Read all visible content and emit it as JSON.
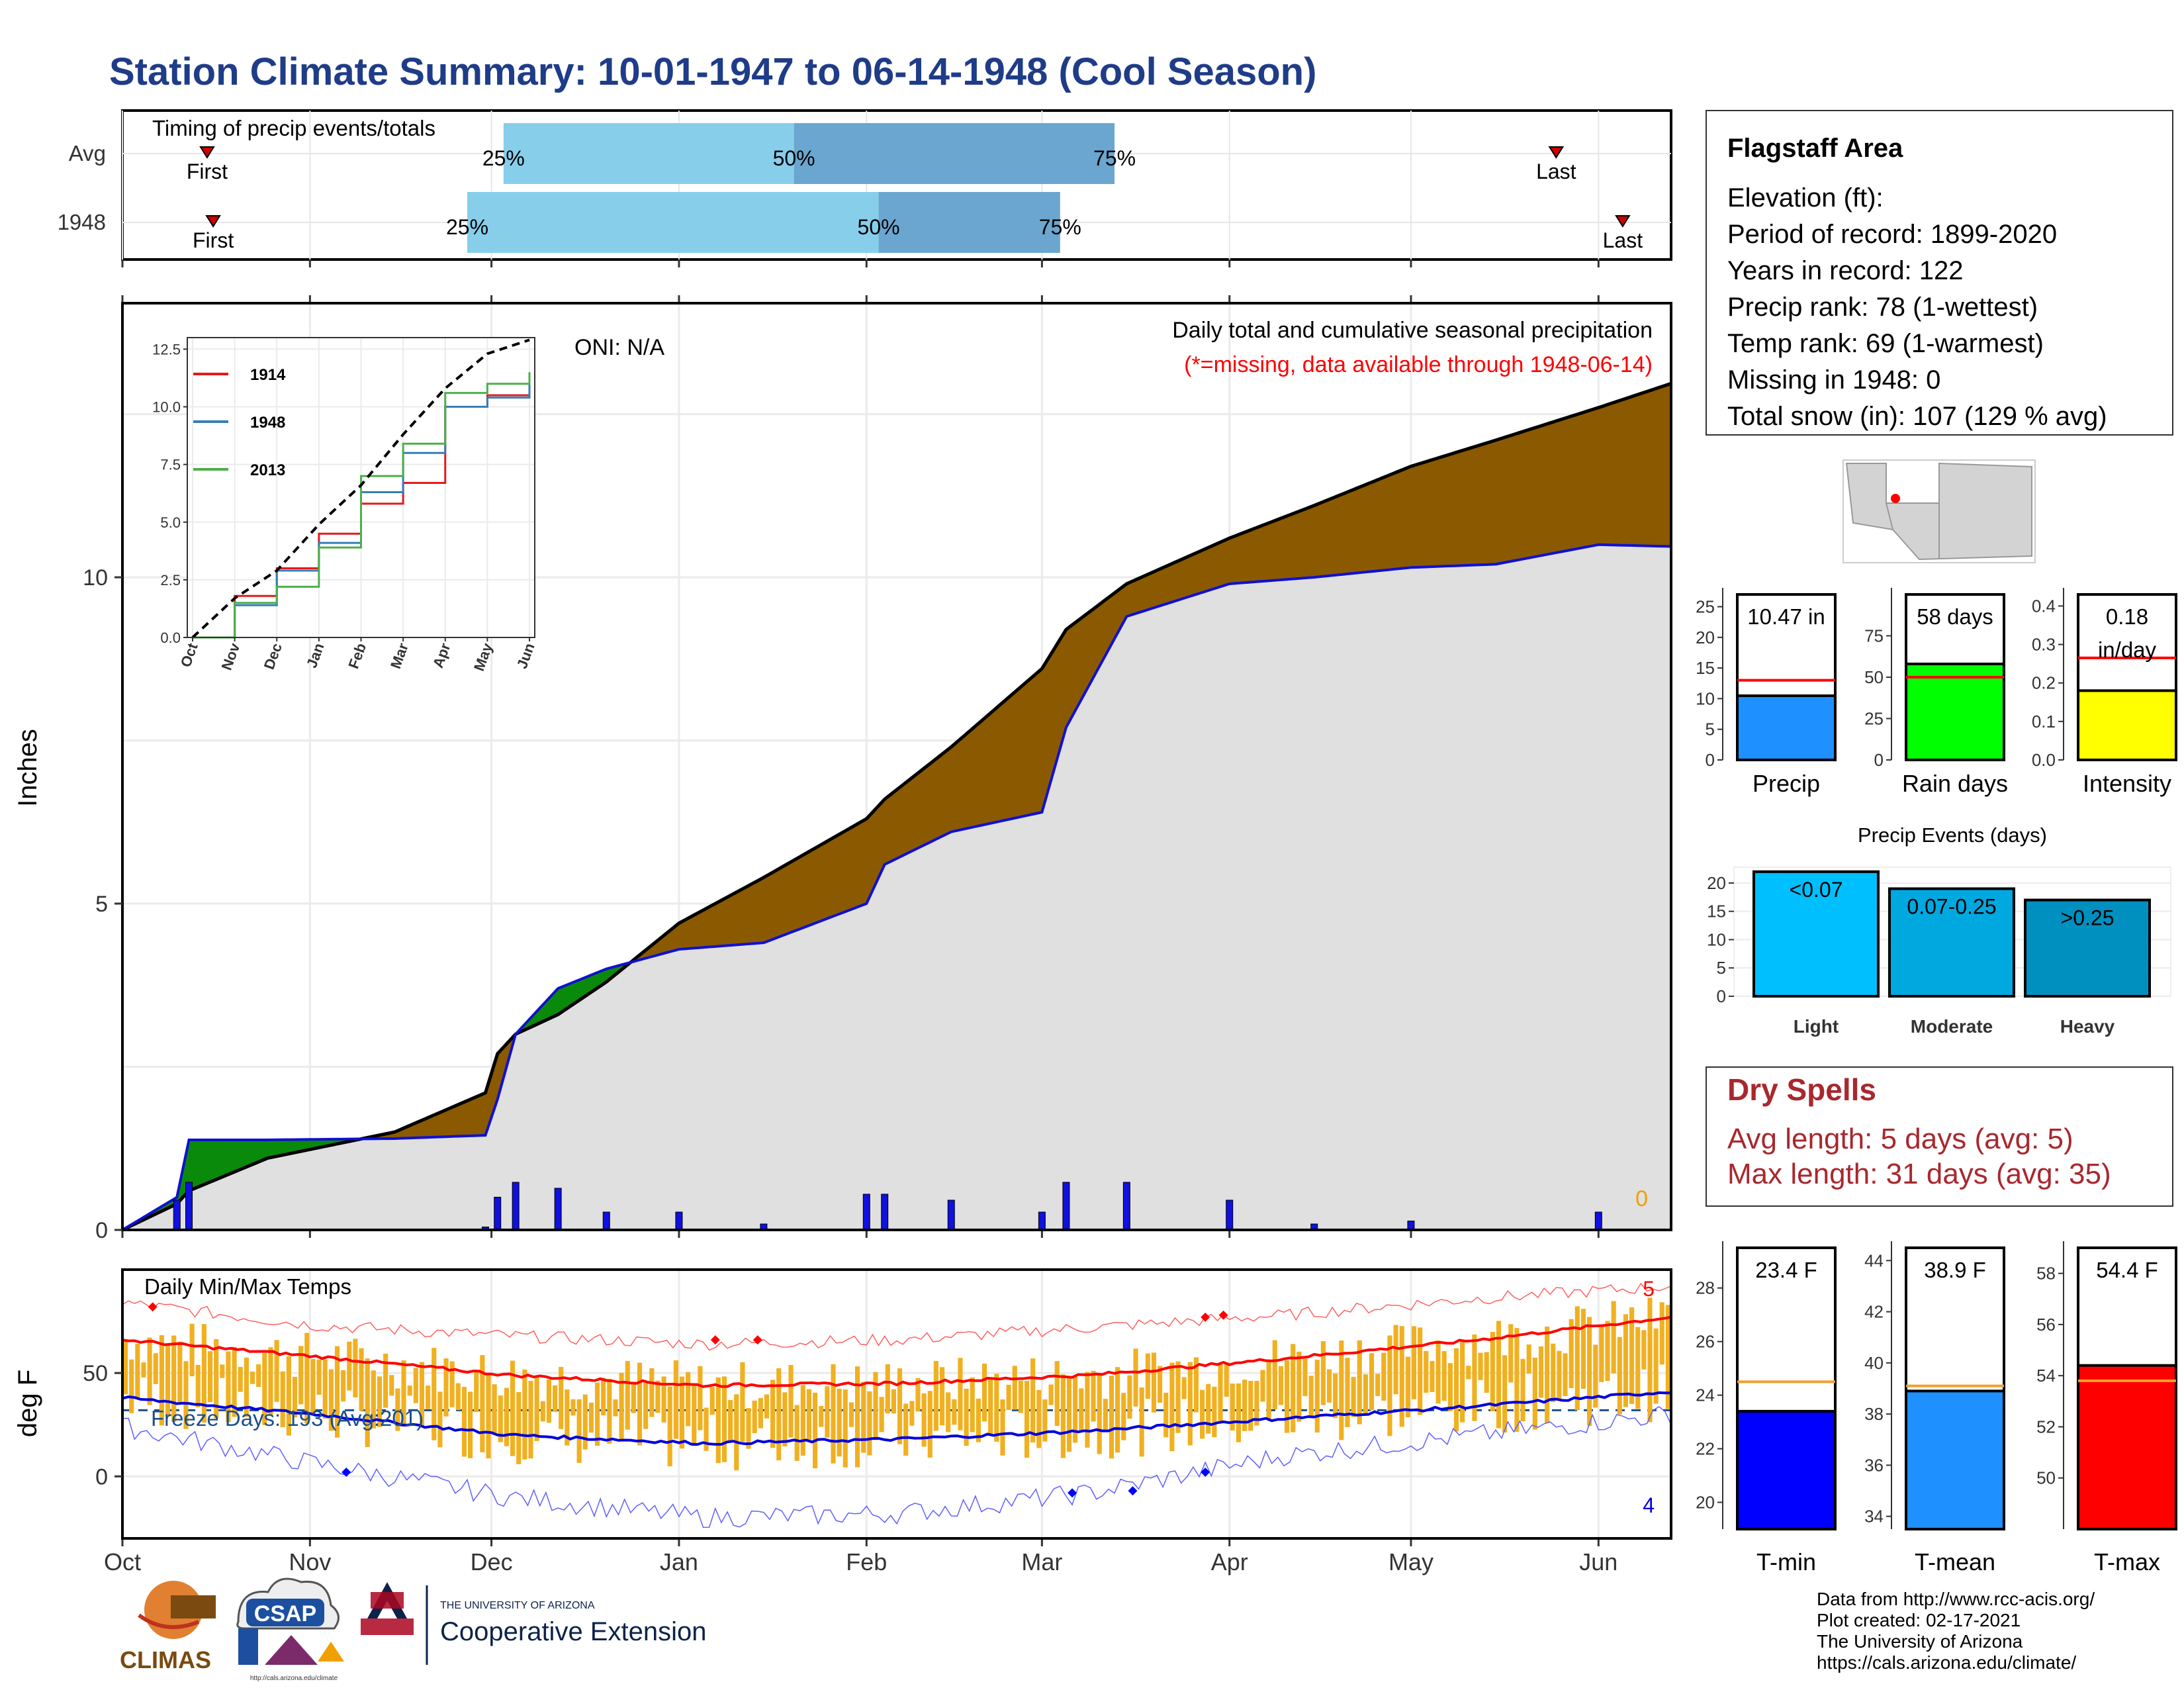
{
  "title": "Station Climate Summary: 10-01-1947 to 06-14-1948 (Cool Season)",
  "colors": {
    "title": "#1f3c88",
    "cum_fill": "#8b5a00",
    "green_fill": "#0a8a0a",
    "gray_fill": "#e0e0e0",
    "cum_line_blue": "#1010d0",
    "bar_blue": "#1010e0",
    "snow": "#7fd4f7",
    "q_light": "#87ceeb",
    "q_dark": "#6aa6cf",
    "tmax_line": "#ff0000",
    "tmin_line": "#0000dd",
    "temp_bar": "#f0b020",
    "orange": "#f0a000"
  },
  "timing": {
    "label": "Timing of precip events/totals",
    "rows": [
      {
        "name": "Avg",
        "first_label": "First",
        "last_label": "Last",
        "first": "Oct 15",
        "p25": "Dec 3",
        "p50": "Jan 20",
        "p75": "Mar 13",
        "last": "May 25"
      },
      {
        "name": "1948",
        "first_label": "First",
        "last_label": "Last",
        "first": "Oct 16",
        "p25": "Nov 27",
        "p50": "Feb 3",
        "p75": "Mar 4",
        "last": "Jun 5"
      }
    ],
    "pct_labels": [
      "25%",
      "50%",
      "75%"
    ]
  },
  "main": {
    "ylabel": "Inches",
    "oni": "ONI: N/A",
    "header": "Daily total and cumulative seasonal precipitation",
    "subheader": "(*=missing, data available through 1948-06-14)",
    "missing_count": "0",
    "yticks": [
      "0",
      "5",
      "10"
    ]
  },
  "inset": {
    "yticks": [
      "0.0",
      "2.5",
      "5.0",
      "7.5",
      "10.0",
      "12.5"
    ],
    "xticks": [
      "Oct",
      "Nov",
      "Dec",
      "Jan",
      "Feb",
      "Mar",
      "Apr",
      "May",
      "Jun"
    ],
    "legend": [
      "1914",
      "1948",
      "2013"
    ]
  },
  "temps": {
    "label": "Daily Min/Max Temps",
    "ylabel": "deg F",
    "freeze": "Freeze Days: 193 (Avg:201)",
    "max_records": "5",
    "min_records": "4",
    "yticks": [
      "0",
      "50"
    ]
  },
  "months": [
    "Oct",
    "Nov",
    "Dec",
    "Jan",
    "Feb",
    "Mar",
    "Apr",
    "May",
    "Jun"
  ],
  "station": {
    "name": "Flagstaff Area",
    "lines": [
      "Elevation (ft):",
      "Period of record: 1899-2020",
      "Years in record: 122",
      "Precip rank: 78 (1-wettest)",
      "Temp rank: 69 (1-warmest)",
      "Missing in 1948: 0",
      "Total snow (in): 107 (129 % avg)"
    ]
  },
  "summary_bars": [
    {
      "label": "Precip",
      "value": 10.47,
      "avg": 13,
      "ymax": 27,
      "text": "10.47 in",
      "ticks": [
        "0",
        "5",
        "10",
        "15",
        "20",
        "25"
      ],
      "tickvals": [
        0,
        5,
        10,
        15,
        20,
        25
      ],
      "color": "#1e90ff"
    },
    {
      "label": "Rain days",
      "value": 58,
      "avg": 50,
      "ymax": 100,
      "text": "58 days",
      "ticks": [
        "0",
        "25",
        "50",
        "75"
      ],
      "tickvals": [
        0,
        25,
        50,
        75
      ],
      "color": "#00ff00"
    },
    {
      "label": "Intensity",
      "value": 0.18,
      "avg": 0.265,
      "ymax": 0.43,
      "text": "0.18",
      "text2": "in/day",
      "ticks": [
        "0.0",
        "0.1",
        "0.2",
        "0.3",
        "0.4"
      ],
      "tickvals": [
        0,
        0.1,
        0.2,
        0.3,
        0.4
      ],
      "color": "#ffff00"
    }
  ],
  "precip_events": {
    "title": "Precip Events (days)",
    "categories": [
      "Light",
      "Moderate",
      "Heavy"
    ],
    "values": [
      22,
      19,
      17
    ],
    "bar_labels": [
      "<0.07",
      "0.07-0.25",
      ">0.25"
    ],
    "ticks": [
      "0",
      "5",
      "10",
      "15",
      "20"
    ],
    "tickvals": [
      0,
      5,
      10,
      15,
      20
    ],
    "colors": [
      "#00bfff",
      "#00a8e0",
      "#0090c0"
    ]
  },
  "dry_spells": {
    "title": "Dry Spells",
    "avg": "Avg length: 5 days (avg: 5)",
    "max": "Max length: 31 days (avg: 35)"
  },
  "temp_bars": [
    {
      "label": "T-min",
      "value": 23.4,
      "avg": 24.5,
      "ymin": 19,
      "ymax": 29.5,
      "text": "23.4 F",
      "ticks": [
        "20",
        "22",
        "24",
        "26",
        "28"
      ],
      "tickvals": [
        20,
        22,
        24,
        26,
        28
      ],
      "color": "#0000ff"
    },
    {
      "label": "T-mean",
      "value": 38.9,
      "avg": 39.1,
      "ymin": 33.5,
      "ymax": 44.5,
      "text": "38.9 F",
      "ticks": [
        "34",
        "36",
        "38",
        "40",
        "42",
        "44"
      ],
      "tickvals": [
        34,
        36,
        38,
        40,
        42,
        44
      ],
      "color": "#1e90ff"
    },
    {
      "label": "T-max",
      "value": 54.4,
      "avg": 53.8,
      "ymin": 48,
      "ymax": 59,
      "text": "54.4 F",
      "ticks": [
        "50",
        "52",
        "54",
        "56",
        "58"
      ],
      "tickvals": [
        50,
        52,
        54,
        56,
        58
      ],
      "color": "#ff0000"
    }
  ],
  "footer": {
    "lines": [
      "Data from http://www.rcc-acis.org/",
      "Plot created: 02-17-2021",
      "The University of Arizona",
      "https://cals.arizona.edu/climate/"
    ],
    "logo1": "CLIMAS",
    "logo2": "CSAP",
    "logo2_url": "http://cals.arizona.edu/climate",
    "logo3_top": "THE UNIVERSITY OF ARIZONA",
    "logo3_bottom": "Cooperative Extension"
  },
  "chart_data": [
    {
      "type": "area",
      "title": "Daily total and cumulative seasonal precipitation",
      "ylabel": "Inches",
      "ylim": [
        0,
        14.2
      ],
      "x": [
        "Oct 1",
        "Oct 10",
        "Oct 12",
        "Oct 25",
        "Nov 15",
        "Nov 30",
        "Dec 2",
        "Dec 5",
        "Dec 12",
        "Dec 20",
        "Jan 1",
        "Jan 15",
        "Feb 1",
        "Feb 4",
        "Feb 15",
        "Mar 1",
        "Mar 5",
        "Mar 15",
        "Apr 1",
        "Apr 15",
        "May 1",
        "May 15",
        "Jun 1",
        "Jun 14"
      ],
      "series": [
        {
          "name": "1948",
          "values": [
            0,
            0.5,
            1.38,
            1.38,
            1.4,
            1.45,
            2.0,
            3.0,
            3.7,
            4.0,
            4.3,
            4.4,
            5.0,
            5.6,
            6.1,
            6.4,
            7.7,
            9.4,
            9.9,
            10.0,
            10.15,
            10.2,
            10.5,
            10.47
          ]
        },
        {
          "name": "Average",
          "values": [
            0,
            0.4,
            0.6,
            1.1,
            1.5,
            2.1,
            2.7,
            3.0,
            3.3,
            3.8,
            4.7,
            5.4,
            6.3,
            6.6,
            7.4,
            8.6,
            9.2,
            9.9,
            10.6,
            11.1,
            11.7,
            12.1,
            12.6,
            13.0
          ]
        }
      ]
    },
    {
      "type": "line",
      "title": "",
      "categories": [
        "Oct",
        "Nov",
        "Dec",
        "Jan",
        "Feb",
        "Mar",
        "Apr",
        "May",
        "Jun"
      ],
      "ylim": [
        0,
        13
      ],
      "series": [
        {
          "name": "1914",
          "values": [
            0,
            1.8,
            3.0,
            4.5,
            5.8,
            6.7,
            10.0,
            10.5,
            11.3
          ]
        },
        {
          "name": "1948",
          "values": [
            0,
            1.4,
            2.9,
            4.1,
            6.3,
            8.0,
            10.0,
            10.4,
            11.2
          ]
        },
        {
          "name": "2013",
          "values": [
            0,
            1.5,
            2.2,
            3.9,
            7.0,
            8.4,
            10.6,
            11.0,
            11.5
          ]
        },
        {
          "name": "Average",
          "values": [
            0,
            1.7,
            2.9,
            4.9,
            6.6,
            8.8,
            10.8,
            12.3,
            12.9
          ]
        }
      ]
    },
    {
      "type": "line",
      "title": "Daily Min/Max Temps",
      "ylabel": "deg F",
      "ylim": [
        -30,
        100
      ],
      "categories": [
        "Oct",
        "Nov",
        "Dec",
        "Jan",
        "Feb",
        "Mar",
        "Apr",
        "May",
        "Jun"
      ],
      "series": [
        {
          "name": "Avg max",
          "values": [
            66,
            58,
            49,
            44,
            45,
            49,
            57,
            66,
            77
          ]
        },
        {
          "name": "Avg min",
          "values": [
            38,
            30,
            20,
            16,
            18,
            22,
            28,
            34,
            41
          ]
        },
        {
          "name": "Record max",
          "values": [
            84,
            73,
            68,
            64,
            66,
            72,
            78,
            86,
            92
          ]
        },
        {
          "name": "Record min",
          "values": [
            24,
            6,
            -10,
            -20,
            -18,
            -8,
            10,
            20,
            30
          ]
        }
      ]
    }
  ]
}
